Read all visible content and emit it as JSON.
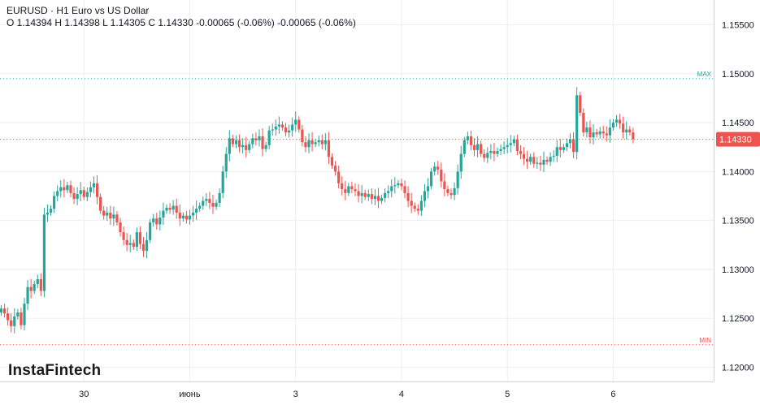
{
  "header": {
    "symbol_line": "EURUSD · H1 Euro vs US Dollar",
    "ohlc_line": "O 1.14394 H 1.14398 L 1.14305 C 1.14330 -0.00065 (-0.06%) -0.00065 (-0.06%)"
  },
  "brand": {
    "name": "InstaFintech"
  },
  "colors": {
    "up": "#26a69a",
    "down": "#ef5350",
    "grid": "#eeeeee",
    "text": "#131722",
    "max_line": "#26a69a",
    "min_line": "#ef5350",
    "price_line": "#ef5350"
  },
  "chart_data": {
    "type": "candlestick",
    "ylim": [
      1.1195,
      1.1575
    ],
    "y_ticks": [
      {
        "value": 1.155,
        "label": "1.15500"
      },
      {
        "value": 1.15,
        "label": "1.15000"
      },
      {
        "value": 1.145,
        "label": "1.14500"
      },
      {
        "value": 1.14,
        "label": "1.14000"
      },
      {
        "value": 1.135,
        "label": "1.13500"
      },
      {
        "value": 1.13,
        "label": "1.13000"
      },
      {
        "value": 1.125,
        "label": "1.12500"
      },
      {
        "value": 1.12,
        "label": "1.12000"
      }
    ],
    "x_ticks": [
      {
        "index": 25,
        "label": "30"
      },
      {
        "index": 57,
        "label": "июнь"
      },
      {
        "index": 89,
        "label": "3"
      },
      {
        "index": 121,
        "label": "4"
      },
      {
        "index": 153,
        "label": "5"
      },
      {
        "index": 185,
        "label": "6"
      }
    ],
    "total_slots": 210,
    "max_line": {
      "value": 1.1495,
      "label": "MAX"
    },
    "min_line": {
      "value": 1.1223,
      "label": "MIN"
    },
    "last_price": {
      "value": 1.1433,
      "label": "1.14330"
    },
    "close_series": [
      1.126,
      1.1255,
      1.1248,
      1.1242,
      1.1252,
      1.1256,
      1.1243,
      1.1265,
      1.1282,
      1.1278,
      1.1285,
      1.129,
      1.1278,
      1.1356,
      1.1358,
      1.1362,
      1.1375,
      1.138,
      1.1384,
      1.1381,
      1.1386,
      1.1378,
      1.1372,
      1.1377,
      1.1381,
      1.1374,
      1.1379,
      1.1384,
      1.1388,
      1.1374,
      1.136,
      1.1355,
      1.1358,
      1.1352,
      1.1356,
      1.1348,
      1.1338,
      1.133,
      1.1325,
      1.1327,
      1.1323,
      1.1338,
      1.1326,
      1.1319,
      1.133,
      1.1348,
      1.1352,
      1.1346,
      1.1353,
      1.136,
      1.1363,
      1.1361,
      1.1365,
      1.1358,
      1.1352,
      1.1355,
      1.1351,
      1.1355,
      1.1358,
      1.1362,
      1.1365,
      1.137,
      1.1372,
      1.1368,
      1.1364,
      1.1368,
      1.1378,
      1.14,
      1.1418,
      1.1434,
      1.1428,
      1.1432,
      1.1425,
      1.1427,
      1.1422,
      1.1428,
      1.1434,
      1.1432,
      1.1436,
      1.1423,
      1.1427,
      1.1442,
      1.1443,
      1.1446,
      1.1448,
      1.1445,
      1.144,
      1.1442,
      1.1448,
      1.1453,
      1.1443,
      1.143,
      1.1425,
      1.1432,
      1.1428,
      1.143,
      1.1432,
      1.1428,
      1.1432,
      1.1415,
      1.1406,
      1.14,
      1.1388,
      1.1382,
      1.1378,
      1.1385,
      1.1382,
      1.138,
      1.1375,
      1.1378,
      1.1374,
      1.1377,
      1.1372,
      1.1375,
      1.137,
      1.1373,
      1.1378,
      1.138,
      1.1385,
      1.1386,
      1.1388,
      1.1385,
      1.1378,
      1.137,
      1.1365,
      1.1362,
      1.136,
      1.137,
      1.138,
      1.1385,
      1.14,
      1.1405,
      1.1402,
      1.139,
      1.1382,
      1.1378,
      1.1376,
      1.1383,
      1.14,
      1.1418,
      1.1432,
      1.1436,
      1.1427,
      1.1422,
      1.1428,
      1.1418,
      1.1414,
      1.1419,
      1.1421,
      1.1418,
      1.1421,
      1.1423,
      1.1425,
      1.1427,
      1.1429,
      1.1433,
      1.1421,
      1.1418,
      1.1413,
      1.141,
      1.1415,
      1.1408,
      1.1409,
      1.1407,
      1.1412,
      1.141,
      1.1415,
      1.1416,
      1.1425,
      1.1422,
      1.1425,
      1.1429,
      1.1433,
      1.142,
      1.1478,
      1.146,
      1.144,
      1.1445,
      1.1435,
      1.144,
      1.1438,
      1.1441,
      1.1439,
      1.1437,
      1.1445,
      1.145,
      1.1453,
      1.1449,
      1.144,
      1.1443,
      1.144,
      1.1433
    ]
  }
}
